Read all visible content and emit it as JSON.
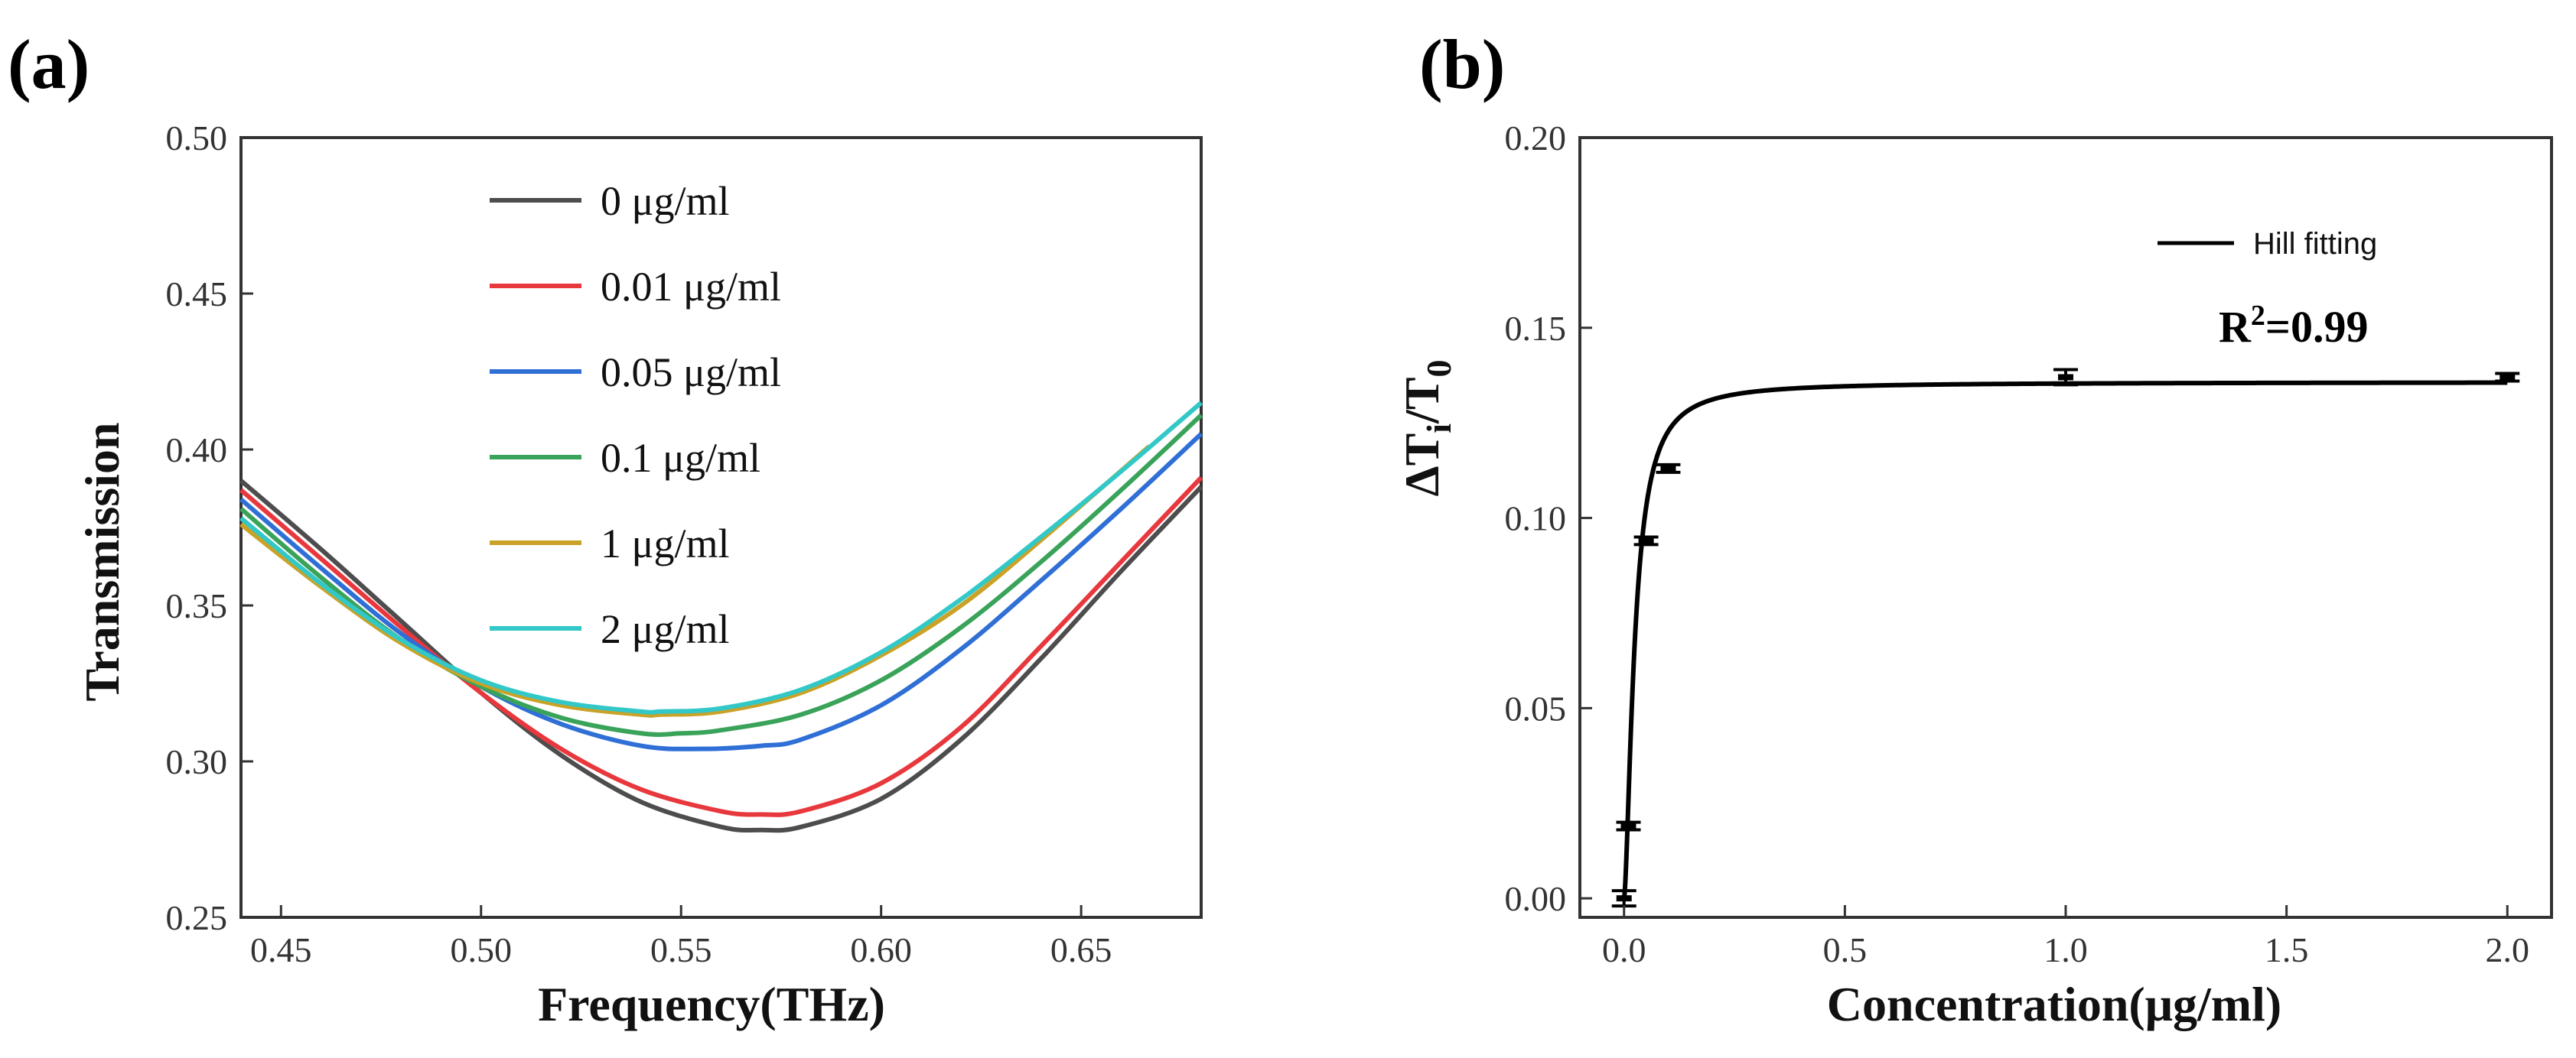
{
  "chart_data": [
    {
      "panel": "(a)",
      "type": "line",
      "xlabel": "Frequency(THz)",
      "ylabel": "Transmission",
      "xlim": [
        0.44,
        0.68
      ],
      "ylim": [
        0.25,
        0.5
      ],
      "xticks": [
        "0.45",
        "0.50",
        "0.55",
        "0.60",
        "0.65"
      ],
      "yticks": [
        "0.25",
        "0.30",
        "0.35",
        "0.40",
        "0.45",
        "0.50"
      ],
      "grid": false,
      "legend_position": "top-center",
      "series": [
        {
          "name": "0 μg/ml",
          "color": "#4d4d4d",
          "x": [
            0.44,
            0.46,
            0.48,
            0.5,
            0.52,
            0.54,
            0.56,
            0.57,
            0.58,
            0.6,
            0.62,
            0.64,
            0.66,
            0.68
          ],
          "y": [
            0.39,
            0.368,
            0.345,
            0.322,
            0.302,
            0.287,
            0.279,
            0.278,
            0.279,
            0.288,
            0.307,
            0.333,
            0.361,
            0.388
          ]
        },
        {
          "name": "0.01 μg/ml",
          "color": "#e8383d",
          "x": [
            0.44,
            0.46,
            0.48,
            0.5,
            0.52,
            0.54,
            0.56,
            0.57,
            0.58,
            0.6,
            0.62,
            0.64,
            0.66,
            0.68
          ],
          "y": [
            0.387,
            0.365,
            0.343,
            0.322,
            0.304,
            0.291,
            0.284,
            0.283,
            0.284,
            0.293,
            0.311,
            0.337,
            0.364,
            0.391
          ]
        },
        {
          "name": "0.05 μg/ml",
          "color": "#2f6fd6",
          "x": [
            0.44,
            0.46,
            0.48,
            0.5,
            0.52,
            0.54,
            0.555,
            0.57,
            0.58,
            0.6,
            0.62,
            0.64,
            0.66,
            0.68
          ],
          "y": [
            0.384,
            0.362,
            0.341,
            0.324,
            0.312,
            0.305,
            0.304,
            0.305,
            0.307,
            0.318,
            0.336,
            0.358,
            0.381,
            0.405
          ]
        },
        {
          "name": "0.1 μg/ml",
          "color": "#3aa35a",
          "x": [
            0.44,
            0.46,
            0.48,
            0.5,
            0.52,
            0.54,
            0.55,
            0.56,
            0.58,
            0.6,
            0.62,
            0.64,
            0.66,
            0.68
          ],
          "y": [
            0.381,
            0.359,
            0.339,
            0.324,
            0.314,
            0.309,
            0.309,
            0.31,
            0.315,
            0.326,
            0.343,
            0.364,
            0.387,
            0.411
          ]
        },
        {
          "name": "1 μg/ml",
          "color": "#c9a227",
          "x": [
            0.44,
            0.46,
            0.48,
            0.5,
            0.52,
            0.54,
            0.545,
            0.56,
            0.58,
            0.6,
            0.62,
            0.64,
            0.667
          ],
          "y": [
            0.376,
            0.356,
            0.338,
            0.325,
            0.318,
            0.315,
            0.315,
            0.316,
            0.322,
            0.334,
            0.35,
            0.371,
            0.401
          ]
        },
        {
          "name": "2 μg/ml",
          "color": "#33c8c8",
          "x": [
            0.44,
            0.46,
            0.48,
            0.5,
            0.52,
            0.54,
            0.545,
            0.56,
            0.58,
            0.6,
            0.62,
            0.64,
            0.66,
            0.68
          ],
          "y": [
            0.378,
            0.357,
            0.339,
            0.326,
            0.319,
            0.316,
            0.316,
            0.317,
            0.323,
            0.335,
            0.352,
            0.372,
            0.393,
            0.415
          ]
        }
      ]
    },
    {
      "panel": "(b)",
      "type": "scatter",
      "xlabel": "Concentration(μg/ml)",
      "ylabel_main": "ΔT",
      "ylabel_sub1": "i",
      "ylabel_slash": "/T",
      "ylabel_sub2": "0",
      "xlim": [
        -0.1,
        2.1
      ],
      "ylim": [
        -0.005,
        0.2
      ],
      "xticks": [
        "0.0",
        "0.5",
        "1.0",
        "1.5",
        "2.0"
      ],
      "yticks": [
        "0.00",
        "0.05",
        "0.10",
        "0.15",
        "0.20"
      ],
      "grid": false,
      "legend_position": "top-right",
      "fit": {
        "name": "Hill fitting",
        "color": "#000000",
        "vmax": 0.1357,
        "k": 0.0245,
        "n": 1.6
      },
      "annotation": {
        "r_base": "R",
        "r_sup": "2",
        "r_value": "=0.99"
      },
      "points": [
        {
          "x": 0.0,
          "y": 0.0,
          "err": 0.002
        },
        {
          "x": 0.01,
          "y": 0.019,
          "err": 0.001
        },
        {
          "x": 0.05,
          "y": 0.094,
          "err": 0.001
        },
        {
          "x": 0.1,
          "y": 0.113,
          "err": 0.001
        },
        {
          "x": 1.0,
          "y": 0.137,
          "err": 0.002
        },
        {
          "x": 2.0,
          "y": 0.137,
          "err": 0.001
        }
      ]
    }
  ]
}
